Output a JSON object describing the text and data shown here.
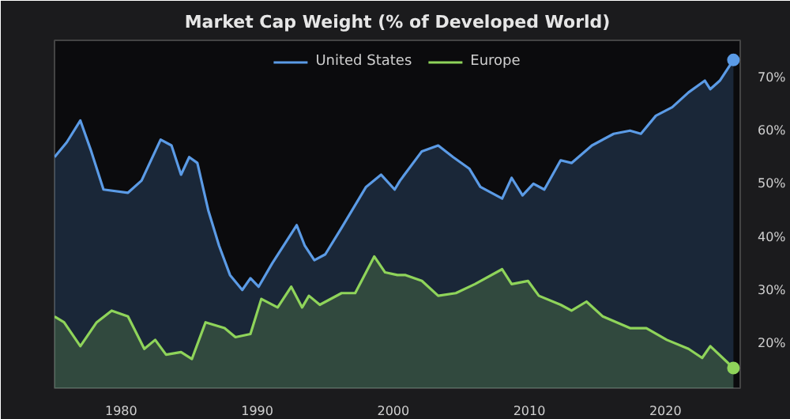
{
  "chart_data": {
    "type": "area",
    "title": "Market Cap Weight (% of Developed World)",
    "legend": "top",
    "grid": false,
    "xlim": [
      1975.1,
      2025.5
    ],
    "xticks": [
      1980,
      1990,
      2000,
      2010,
      2020
    ],
    "ylim": [
      11.5,
      77
    ],
    "yticks": [
      {
        "value": 20,
        "label": "20%"
      },
      {
        "value": 30,
        "label": "30%"
      },
      {
        "value": 40,
        "label": "40%"
      },
      {
        "value": 50,
        "label": "50%"
      },
      {
        "value": 60,
        "label": "60%"
      },
      {
        "value": 70,
        "label": "70%"
      }
    ],
    "series": [
      {
        "name": "United States",
        "color": "#5b9be6",
        "x": [
          1975.1,
          1976.0,
          1977.0,
          1977.8,
          1978.7,
          1980.5,
          1981.5,
          1982.9,
          1983.7,
          1984.4,
          1985.0,
          1985.6,
          1986.4,
          1987.2,
          1988.0,
          1988.9,
          1989.5,
          1990.1,
          1991.1,
          1992.5,
          1992.9,
          1993.5,
          1994.2,
          1995.0,
          1996.2,
          1998.0,
          1999.1,
          2000.1,
          2000.5,
          2002.1,
          2003.3,
          2004.4,
          2005.6,
          2006.4,
          2008.0,
          2008.7,
          2009.5,
          2010.3,
          2011.1,
          2012.3,
          2013.1,
          2014.6,
          2016.2,
          2017.4,
          2018.2,
          2019.3,
          2020.5,
          2021.7,
          2022.9,
          2023.3,
          2024.0,
          2025.0
        ],
        "values": [
          55,
          57.8,
          61.9,
          56.1,
          48.9,
          48.3,
          50.6,
          58.3,
          57.2,
          51.7,
          55,
          53.9,
          45,
          38.3,
          32.8,
          30,
          32.2,
          30.6,
          35,
          40.6,
          42.2,
          38.3,
          35.6,
          36.7,
          41.7,
          49.4,
          51.7,
          48.9,
          50.6,
          56.1,
          57.2,
          55,
          52.8,
          49.4,
          47.2,
          51.1,
          47.8,
          50,
          48.9,
          54.4,
          53.9,
          57.2,
          59.4,
          60,
          59.4,
          62.8,
          64.4,
          67.2,
          69.4,
          67.8,
          69.4,
          73.3
        ]
      },
      {
        "name": "Europe",
        "color": "#8fd45a",
        "x": [
          1975.1,
          1975.8,
          1977.0,
          1978.2,
          1979.3,
          1980.5,
          1981.7,
          1982.5,
          1983.3,
          1984.4,
          1985.2,
          1986.2,
          1987.6,
          1988.4,
          1989.5,
          1990.3,
          1991.5,
          1992.5,
          1993.3,
          1993.8,
          1994.6,
          1996.2,
          1997.2,
          1998.6,
          1999.4,
          2000.3,
          2000.9,
          2002.1,
          2003.3,
          2004.6,
          2006.0,
          2008.0,
          2008.7,
          2009.9,
          2010.7,
          2012.3,
          2013.1,
          2014.2,
          2015.4,
          2017.4,
          2018.6,
          2020.1,
          2021.7,
          2022.7,
          2023.3,
          2025.0
        ],
        "values": [
          25,
          23.9,
          19.4,
          23.9,
          26.1,
          25,
          18.9,
          20.6,
          17.8,
          18.3,
          17,
          23.9,
          22.8,
          21.1,
          21.7,
          28.3,
          26.7,
          30.6,
          26.7,
          28.9,
          27.2,
          29.4,
          29.4,
          36.3,
          33.3,
          32.8,
          32.8,
          31.7,
          28.9,
          29.4,
          31.1,
          33.9,
          31.1,
          31.7,
          28.9,
          27.2,
          26.1,
          27.8,
          25,
          22.8,
          22.8,
          20.6,
          18.9,
          17.2,
          19.4,
          15.3
        ]
      },
      {
        "type": "scatter",
        "color": "#5b9be6",
        "x": [
          2025.0
        ],
        "values": [
          73.3
        ]
      },
      {
        "type": "scatter",
        "color": "#8fd45a",
        "x": [
          2025.0
        ],
        "values": [
          15.3
        ]
      }
    ]
  }
}
